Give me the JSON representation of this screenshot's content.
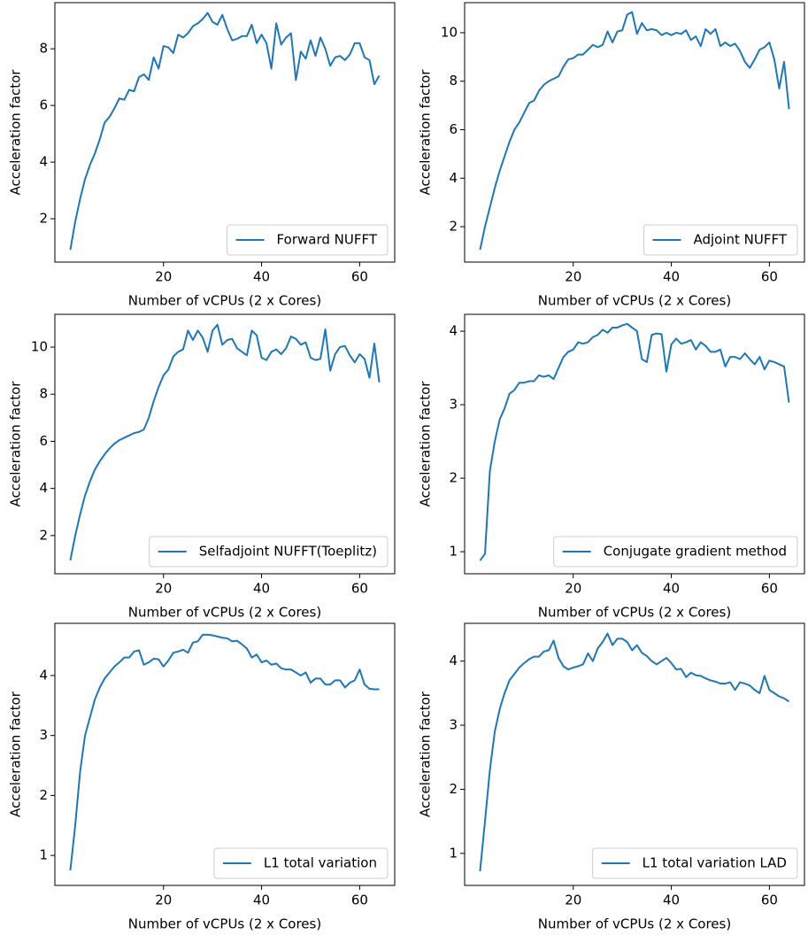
{
  "chart_data": [
    {
      "type": "line",
      "xlabel": "Number of vCPUs (2 x Cores)",
      "ylabel": "Acceleration factor",
      "legend": "lower right",
      "x": [
        1,
        2,
        3,
        4,
        5,
        6,
        7,
        8,
        9,
        10,
        11,
        12,
        13,
        14,
        15,
        16,
        17,
        18,
        19,
        20,
        21,
        22,
        23,
        24,
        25,
        26,
        27,
        28,
        29,
        30,
        31,
        32,
        33,
        34,
        35,
        36,
        37,
        38,
        39,
        40,
        41,
        42,
        43,
        44,
        45,
        46,
        47,
        48,
        49,
        50,
        51,
        52,
        53,
        54,
        55,
        56,
        57,
        58,
        59,
        60,
        61,
        62,
        63,
        64
      ],
      "xlim": [
        -2.15,
        67.15
      ],
      "xticks": [
        20,
        40,
        60
      ],
      "ylim": [
        0.47,
        9.63
      ],
      "yticks": [
        2,
        4,
        6,
        8
      ],
      "series": [
        {
          "name": "Forward NUFFT",
          "color": "#1f77b4",
          "values": [
            0.9,
            1.9,
            2.7,
            3.4,
            3.9,
            4.3,
            4.8,
            5.4,
            5.6,
            5.9,
            6.25,
            6.2,
            6.55,
            6.5,
            7.0,
            7.1,
            6.9,
            7.7,
            7.3,
            8.1,
            8.05,
            7.85,
            8.5,
            8.4,
            8.55,
            8.8,
            8.9,
            9.05,
            9.27,
            8.95,
            8.85,
            9.2,
            8.7,
            8.3,
            8.35,
            8.45,
            8.45,
            8.85,
            8.2,
            8.5,
            8.2,
            7.3,
            8.9,
            8.15,
            8.4,
            8.55,
            6.9,
            7.9,
            7.65,
            8.3,
            7.75,
            8.4,
            8.0,
            7.4,
            7.7,
            7.75,
            7.6,
            7.8,
            8.2,
            8.2,
            7.7,
            7.6,
            6.75,
            7.05
          ]
        }
      ]
    },
    {
      "type": "line",
      "xlabel": "Number of vCPUs (2 x Cores)",
      "ylabel": "Acceleration factor",
      "legend": "lower right",
      "x": [
        1,
        2,
        3,
        4,
        5,
        6,
        7,
        8,
        9,
        10,
        11,
        12,
        13,
        14,
        15,
        16,
        17,
        18,
        19,
        20,
        21,
        22,
        23,
        24,
        25,
        26,
        27,
        28,
        29,
        30,
        31,
        32,
        33,
        34,
        35,
        36,
        37,
        38,
        39,
        40,
        41,
        42,
        43,
        44,
        45,
        46,
        47,
        48,
        49,
        50,
        51,
        52,
        53,
        54,
        55,
        56,
        57,
        58,
        59,
        60,
        61,
        62,
        63,
        64
      ],
      "xlim": [
        -2.15,
        67.15
      ],
      "xticks": [
        20,
        40,
        60
      ],
      "ylim": [
        0.54,
        11.24
      ],
      "yticks": [
        2,
        4,
        6,
        8,
        10
      ],
      "series": [
        {
          "name": "Adjoint NUFFT",
          "color": "#1f77b4",
          "values": [
            1.05,
            2.0,
            2.8,
            3.6,
            4.3,
            4.9,
            5.5,
            6.0,
            6.3,
            6.7,
            7.1,
            7.2,
            7.6,
            7.85,
            8.0,
            8.1,
            8.2,
            8.6,
            8.9,
            8.95,
            9.1,
            9.1,
            9.3,
            9.5,
            9.4,
            9.5,
            10.05,
            9.6,
            10.05,
            10.1,
            10.75,
            10.85,
            9.95,
            10.4,
            10.1,
            10.15,
            10.1,
            9.9,
            10.0,
            9.9,
            10.0,
            9.95,
            10.1,
            9.7,
            9.85,
            9.45,
            10.15,
            9.95,
            10.15,
            9.45,
            9.6,
            9.45,
            9.55,
            9.25,
            8.8,
            8.55,
            8.9,
            9.3,
            9.4,
            9.6,
            8.9,
            7.7,
            8.8,
            6.85
          ]
        }
      ]
    },
    {
      "type": "line",
      "xlabel": "Number of vCPUs (2 x Cores)",
      "ylabel": "Acceleration factor",
      "legend": "lower right",
      "x": [
        1,
        2,
        3,
        4,
        5,
        6,
        7,
        8,
        9,
        10,
        11,
        12,
        13,
        14,
        15,
        16,
        17,
        18,
        19,
        20,
        21,
        22,
        23,
        24,
        25,
        26,
        27,
        28,
        29,
        30,
        31,
        32,
        33,
        34,
        35,
        36,
        37,
        38,
        39,
        40,
        41,
        42,
        43,
        44,
        45,
        46,
        47,
        48,
        49,
        50,
        51,
        52,
        53,
        54,
        55,
        56,
        57,
        58,
        59,
        60,
        61,
        62,
        63,
        64
      ],
      "xlim": [
        -2.15,
        67.15
      ],
      "xticks": [
        20,
        40,
        60
      ],
      "ylim": [
        0.38,
        11.39
      ],
      "yticks": [
        2,
        4,
        6,
        8,
        10
      ],
      "series": [
        {
          "name": "Selfadjoint NUFFT(Toeplitz)",
          "color": "#1f77b4",
          "values": [
            0.95,
            2.0,
            2.9,
            3.7,
            4.3,
            4.8,
            5.15,
            5.45,
            5.7,
            5.9,
            6.05,
            6.15,
            6.25,
            6.35,
            6.4,
            6.5,
            7.0,
            7.7,
            8.3,
            8.8,
            9.05,
            9.6,
            9.8,
            9.9,
            10.7,
            10.3,
            10.7,
            10.4,
            9.8,
            10.7,
            10.95,
            10.1,
            10.3,
            10.35,
            9.95,
            9.8,
            9.65,
            10.7,
            10.5,
            9.55,
            9.45,
            9.8,
            9.9,
            9.7,
            9.95,
            10.45,
            10.35,
            10.1,
            10.2,
            9.55,
            9.45,
            9.5,
            10.75,
            9.0,
            9.7,
            10.0,
            10.05,
            9.65,
            9.35,
            9.7,
            9.5,
            8.7,
            10.15,
            8.5
          ]
        }
      ]
    },
    {
      "type": "line",
      "xlabel": "Number of vCPUs (2 x Cores)",
      "ylabel": "Acceleration factor",
      "legend": "lower right",
      "x": [
        1,
        2,
        3,
        4,
        5,
        6,
        7,
        8,
        9,
        10,
        11,
        12,
        13,
        14,
        15,
        16,
        17,
        18,
        19,
        20,
        21,
        22,
        23,
        24,
        25,
        26,
        27,
        28,
        29,
        30,
        31,
        32,
        33,
        34,
        35,
        36,
        37,
        38,
        39,
        40,
        41,
        42,
        43,
        44,
        45,
        46,
        47,
        48,
        49,
        50,
        51,
        52,
        53,
        54,
        55,
        56,
        57,
        58,
        59,
        60,
        61,
        62,
        63,
        64
      ],
      "xlim": [
        -2.15,
        67.15
      ],
      "xticks": [
        20,
        40,
        60
      ],
      "ylim": [
        0.7,
        4.23
      ],
      "yticks": [
        1,
        2,
        3,
        4
      ],
      "series": [
        {
          "name": "Conjugate gradient method",
          "color": "#1f77b4",
          "values": [
            0.88,
            0.97,
            2.1,
            2.5,
            2.8,
            2.95,
            3.15,
            3.2,
            3.3,
            3.3,
            3.32,
            3.32,
            3.4,
            3.38,
            3.4,
            3.35,
            3.5,
            3.65,
            3.72,
            3.75,
            3.85,
            3.83,
            3.85,
            3.92,
            3.95,
            4.02,
            3.98,
            4.05,
            4.05,
            4.08,
            4.1,
            4.05,
            4.0,
            3.62,
            3.58,
            3.95,
            3.97,
            3.96,
            3.45,
            3.82,
            3.9,
            3.83,
            3.85,
            3.88,
            3.75,
            3.85,
            3.8,
            3.72,
            3.72,
            3.75,
            3.52,
            3.65,
            3.65,
            3.62,
            3.7,
            3.62,
            3.55,
            3.65,
            3.48,
            3.6,
            3.58,
            3.55,
            3.52,
            3.03
          ]
        }
      ]
    },
    {
      "type": "line",
      "xlabel": "Number of vCPUs (2 x Cores)",
      "ylabel": "Acceleration factor",
      "legend": "lower right",
      "x": [
        1,
        2,
        3,
        4,
        5,
        6,
        7,
        8,
        9,
        10,
        11,
        12,
        13,
        14,
        15,
        16,
        17,
        18,
        19,
        20,
        21,
        22,
        23,
        24,
        25,
        26,
        27,
        28,
        29,
        30,
        31,
        32,
        33,
        34,
        35,
        36,
        37,
        38,
        39,
        40,
        41,
        42,
        43,
        44,
        45,
        46,
        47,
        48,
        49,
        50,
        51,
        52,
        53,
        54,
        55,
        56,
        57,
        58,
        59,
        60,
        61,
        62,
        63,
        64
      ],
      "xlim": [
        -2.15,
        67.15
      ],
      "xticks": [
        20,
        40,
        60
      ],
      "ylim": [
        0.5,
        4.87
      ],
      "yticks": [
        1,
        2,
        3,
        4
      ],
      "series": [
        {
          "name": "L1 total variation",
          "color": "#1f77b4",
          "values": [
            0.75,
            1.5,
            2.4,
            3.0,
            3.3,
            3.6,
            3.8,
            3.95,
            4.05,
            4.15,
            4.22,
            4.3,
            4.3,
            4.4,
            4.42,
            4.18,
            4.22,
            4.28,
            4.27,
            4.15,
            4.25,
            4.38,
            4.4,
            4.43,
            4.38,
            4.55,
            4.57,
            4.68,
            4.68,
            4.67,
            4.65,
            4.63,
            4.62,
            4.57,
            4.58,
            4.52,
            4.45,
            4.3,
            4.35,
            4.22,
            4.25,
            4.18,
            4.2,
            4.12,
            4.1,
            4.1,
            4.05,
            4.0,
            4.05,
            3.88,
            3.95,
            3.95,
            3.85,
            3.85,
            3.92,
            3.92,
            3.8,
            3.88,
            3.92,
            4.1,
            3.85,
            3.78,
            3.77,
            3.77
          ]
        }
      ]
    },
    {
      "type": "line",
      "xlabel": "Number of vCPUs (2 x Cores)",
      "ylabel": "Acceleration factor",
      "legend": "lower right",
      "x": [
        1,
        2,
        3,
        4,
        5,
        6,
        7,
        8,
        9,
        10,
        11,
        12,
        13,
        14,
        15,
        16,
        17,
        18,
        19,
        20,
        21,
        22,
        23,
        24,
        25,
        26,
        27,
        28,
        29,
        30,
        31,
        32,
        33,
        34,
        35,
        36,
        37,
        38,
        39,
        40,
        41,
        42,
        43,
        44,
        45,
        46,
        47,
        48,
        49,
        50,
        51,
        52,
        53,
        54,
        55,
        56,
        57,
        58,
        59,
        60,
        61,
        62,
        63,
        64
      ],
      "xlim": [
        -2.15,
        67.15
      ],
      "xticks": [
        20,
        40,
        60
      ],
      "ylim": [
        0.5,
        4.59
      ],
      "yticks": [
        1,
        2,
        3,
        4
      ],
      "series": [
        {
          "name": "L1 total variation LAD",
          "color": "#1f77b4",
          "values": [
            0.72,
            1.5,
            2.3,
            2.9,
            3.25,
            3.5,
            3.7,
            3.8,
            3.9,
            3.97,
            4.03,
            4.07,
            4.07,
            4.15,
            4.17,
            4.32,
            4.05,
            3.92,
            3.87,
            3.9,
            3.92,
            3.95,
            4.12,
            4.0,
            4.2,
            4.3,
            4.43,
            4.25,
            4.35,
            4.35,
            4.3,
            4.17,
            4.25,
            4.13,
            4.08,
            4.0,
            3.95,
            4.0,
            4.05,
            3.97,
            3.87,
            3.88,
            3.75,
            3.82,
            3.78,
            3.77,
            3.73,
            3.7,
            3.68,
            3.65,
            3.65,
            3.67,
            3.55,
            3.67,
            3.65,
            3.62,
            3.55,
            3.5,
            3.77,
            3.55,
            3.5,
            3.45,
            3.42,
            3.37
          ]
        }
      ]
    }
  ]
}
